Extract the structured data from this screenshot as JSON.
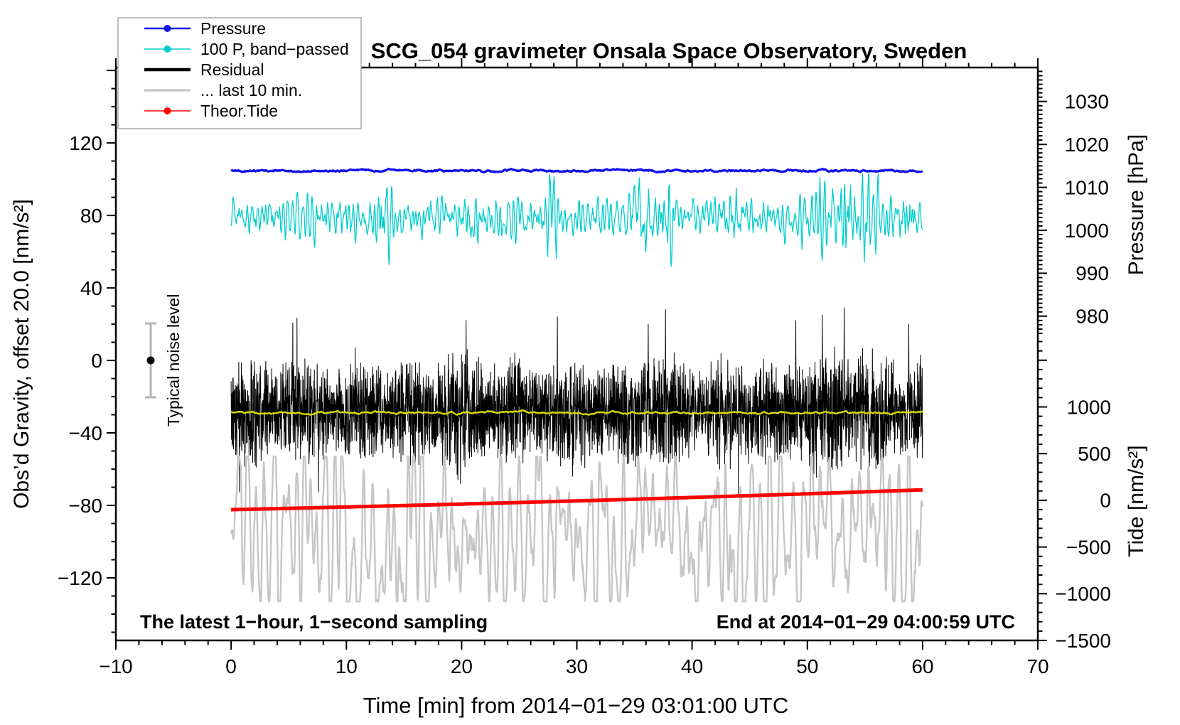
{
  "figure": {
    "annotation_left": "The latest 1−hour, 1−second sampling",
    "annotation_right": "End at 2014−01−29 04:00:59 UTC",
    "noise_label": "Typical noise level",
    "background": "#ffffff",
    "frame_color": "#000000"
  },
  "legend": {
    "border_color": "#a8a8a8",
    "items": [
      {
        "label": "Pressure",
        "color": "#1212e8",
        "marker": true,
        "line_width": 2.4
      },
      {
        "label": "100 P, band−passed",
        "color": "#00cdcd",
        "marker": true,
        "line_width": 1.5
      },
      {
        "label": "Residual",
        "color": "#000000",
        "marker": false,
        "line_width": 4.5
      },
      {
        "label": "... last 10 min.",
        "color": "#c8c8c8",
        "marker": false,
        "line_width": 3.5
      },
      {
        "label": "Theor.Tide",
        "color": "#ff0000",
        "marker": true,
        "line_width": 1.5
      }
    ]
  },
  "chart_data": {
    "type": "line",
    "title": "SCG_054 gravimeter Onsala Space Observatory, Sweden",
    "xlabel": "Time [min] from 2014−01−29 03:01:00 UTC",
    "grid": false,
    "x_axis": {
      "range": [
        -10,
        70
      ],
      "major_ticks": [
        -10,
        0,
        10,
        20,
        30,
        40,
        50,
        60,
        70
      ],
      "minor_step": 2
    },
    "gravity_axis": {
      "side": "left",
      "label": "Obs’d Gravity, offset 20.0 [nm/s²]",
      "range_full": [
        -154.5,
        161.6
      ],
      "major_ticks": [
        -120,
        -80,
        -40,
        0,
        40,
        80,
        120
      ],
      "major_unlabeled": [
        160
      ],
      "minor_step": 10,
      "minor_range": [
        -150,
        160
      ]
    },
    "pressure_axis": {
      "side": "right",
      "label": "Pressure [hPa]",
      "range_full": [
        904.5,
        1037.9
      ],
      "major_ticks": [
        980,
        990,
        1000,
        1010,
        1020,
        1030
      ],
      "major_unlabeled": [],
      "minor_step": 1,
      "minor_range": [
        976,
        1037
      ]
    },
    "tide_axis": {
      "side": "right",
      "label": "Tide [nm/s²]",
      "range_full": [
        -1500,
        4634
      ],
      "major_ticks": [
        -1500,
        -1000,
        -500,
        0,
        500,
        1000
      ],
      "major_unlabeled": [
        1500
      ],
      "minor_step": 100,
      "minor_range": [
        -1500,
        1700
      ]
    },
    "noise_indicator": {
      "x_min": -7,
      "center": 0,
      "half_range": 20.4,
      "axis": "gravity"
    },
    "series": [
      {
        "name": "Residual",
        "kind": "dense",
        "axis": "gravity",
        "color": "#000000",
        "width": 1.0,
        "x_span": [
          0,
          60
        ],
        "n": 3600,
        "mean": -28,
        "amp": 30,
        "clamp": [
          -76,
          33
        ],
        "bursts": [
          [
            20,
            1.3
          ],
          [
            36,
            1.2
          ],
          [
            52,
            1.25
          ],
          [
            55,
            1.2
          ]
        ],
        "spikes": [
          [
            2.1,
            -58
          ],
          [
            19.9,
            -68
          ],
          [
            20.2,
            -55
          ],
          [
            28.3,
            24
          ],
          [
            36.2,
            20
          ],
          [
            37.7,
            28
          ],
          [
            42.4,
            -60
          ],
          [
            44.9,
            -57
          ],
          [
            49.0,
            22
          ],
          [
            51.3,
            25
          ],
          [
            53.2,
            29
          ],
          [
            55.6,
            -54
          ],
          [
            58.8,
            20
          ]
        ]
      },
      {
        "name": "Residual smoothed",
        "kind": "smooth",
        "axis": "gravity",
        "color": "#d8d800",
        "width": 2.4,
        "x_span": [
          0,
          60
        ],
        "n": 900,
        "mean": -28.8,
        "drive": 0.7
      },
      {
        "name": "... last 10 min.",
        "kind": "osc",
        "axis": "gravity",
        "color": "#c6c6c6",
        "width": 2.4,
        "x_span": [
          0,
          60
        ],
        "n": 1500,
        "mean": -95,
        "drive": 15,
        "clamp": [
          -133,
          -53
        ],
        "bursts": [
          [
            8.8,
            1.45
          ],
          [
            15,
            1.25
          ],
          [
            43,
            1.55
          ],
          [
            58.6,
            1.4
          ]
        ]
      },
      {
        "name": "Theor.Tide",
        "kind": "trend",
        "axis": "tide",
        "color": "#ff0000",
        "width": 5,
        "x_span": [
          0,
          60
        ],
        "n": 400,
        "start": -100,
        "end": 112,
        "bend": -12
      },
      {
        "name": "100 P, band−passed",
        "kind": "band",
        "axis": "gravity",
        "color": "#00cdcd",
        "width": 1.3,
        "x_span": [
          0,
          60
        ],
        "n": 1200,
        "mean": 78.5,
        "drive": 9,
        "clamp": [
          46,
          103
        ],
        "bursts": [
          [
            13.2,
            2.6
          ],
          [
            20.5,
            1.8
          ],
          [
            27.8,
            2.2
          ],
          [
            35.6,
            3.0
          ],
          [
            37.8,
            2.4
          ],
          [
            44,
            2.0
          ],
          [
            51.3,
            3.2
          ],
          [
            53.3,
            3.0
          ],
          [
            55.2,
            2.6
          ],
          [
            58.8,
            2.0
          ]
        ]
      },
      {
        "name": "Pressure",
        "kind": "flat",
        "axis": "pressure",
        "color": "#1212e8",
        "width": 3.2,
        "x_span": [
          0,
          60
        ],
        "n": 1500,
        "mean": 1013.9,
        "jitter": 0.22
      }
    ]
  }
}
